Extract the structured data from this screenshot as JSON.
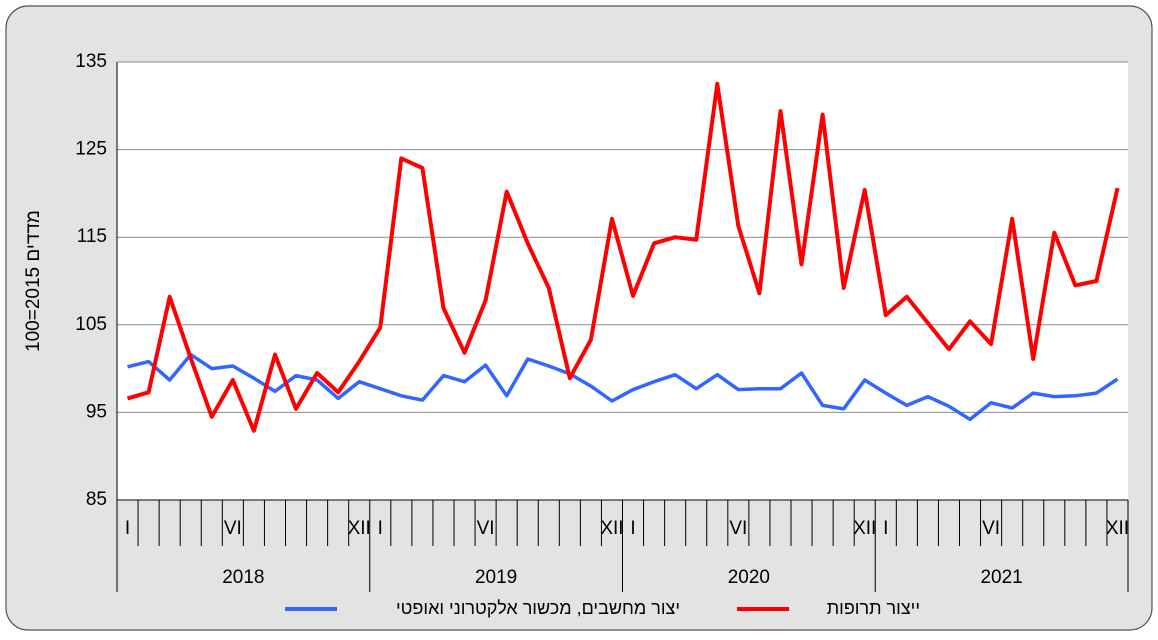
{
  "chart_data": {
    "type": "line",
    "y_label": "מדדים 2015=100",
    "categories": [
      "I",
      null,
      null,
      null,
      null,
      "VI",
      null,
      null,
      null,
      null,
      null,
      "XII",
      "I",
      null,
      null,
      null,
      null,
      "VI",
      null,
      null,
      null,
      null,
      null,
      "XII",
      "I",
      null,
      null,
      null,
      null,
      "VI",
      null,
      null,
      null,
      null,
      null,
      "XII",
      "I",
      null,
      null,
      null,
      null,
      "VI",
      null,
      null,
      null,
      null,
      null,
      "XII"
    ],
    "years": [
      "2018",
      "2019",
      "2020",
      "2021"
    ],
    "ylim": [
      85,
      135
    ],
    "yticks": [
      85,
      95,
      105,
      115,
      125,
      135
    ],
    "grid": true,
    "series": [
      {
        "name": "יצור מחשבים, מכשור אלקטרוני ואופטי",
        "color": "#3366ff",
        "values": [
          100.2,
          100.8,
          98.7,
          101.6,
          100.0,
          100.3,
          98.9,
          97.4,
          99.2,
          98.7,
          96.6,
          98.5,
          97.7,
          96.9,
          96.4,
          99.2,
          98.5,
          100.4,
          96.9,
          101.1,
          100.3,
          99.4,
          98.0,
          96.3,
          97.6,
          98.5,
          99.3,
          97.7,
          99.3,
          97.6,
          97.7,
          97.7,
          99.5,
          95.8,
          95.4,
          98.7,
          97.2,
          95.8,
          96.8,
          95.7,
          94.2,
          96.1,
          95.5,
          97.2,
          96.8,
          96.9,
          97.2,
          98.8
        ]
      },
      {
        "name": "ייצור תרופות",
        "color": "#ff0000",
        "values": [
          96.6,
          97.3,
          108.2,
          101.2,
          94.5,
          98.7,
          92.9,
          101.6,
          95.4,
          99.5,
          97.3,
          100.8,
          104.7,
          124.0,
          122.9,
          106.9,
          101.8,
          107.8,
          120.2,
          114.3,
          109.2,
          98.9,
          103.3,
          117.1,
          108.3,
          114.3,
          115.0,
          114.7,
          132.5,
          116.3,
          108.6,
          129.4,
          111.9,
          129.0,
          109.2,
          120.4,
          106.1,
          108.2,
          105.2,
          102.2,
          105.4,
          102.8,
          117.1,
          101.1,
          115.5,
          109.5,
          110.0,
          120.6
        ]
      }
    ]
  }
}
